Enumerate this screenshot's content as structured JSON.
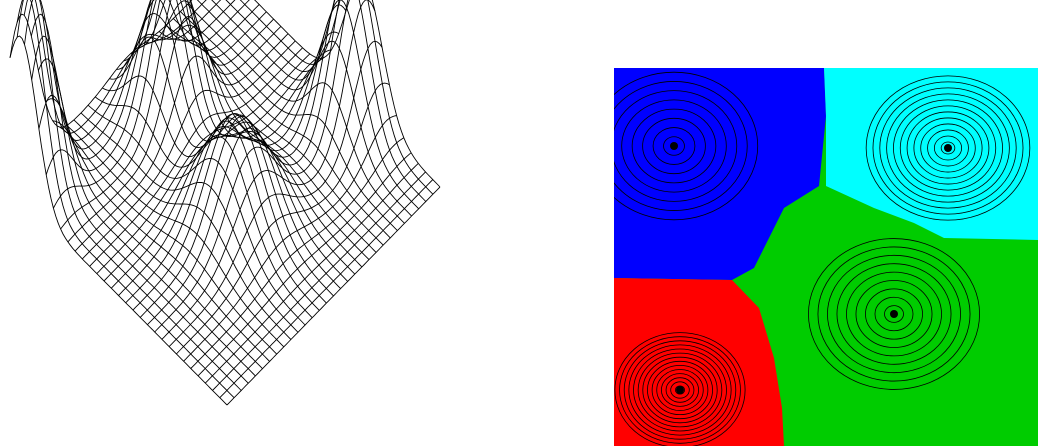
{
  "figure": {
    "surface_plot": {
      "type": "3d-wireframe-surface",
      "grid_lines_per_side": 31,
      "peaks": [
        {
          "name": "back-left",
          "height": 1.0
        },
        {
          "name": "back-center",
          "height": 0.72
        },
        {
          "name": "back-right",
          "height": 0.78
        },
        {
          "name": "front",
          "height": 0.5
        }
      ],
      "line_color": "#000000",
      "background": "#ffffff"
    },
    "region_plot": {
      "type": "partition-with-contours",
      "regions": [
        {
          "name": "top-left",
          "color": "#0000ff"
        },
        {
          "name": "top-right",
          "color": "#00ffff"
        },
        {
          "name": "bottom-left",
          "color": "#ff0000"
        },
        {
          "name": "bottom-right",
          "color": "#00cc00"
        }
      ],
      "centers": [
        {
          "region": "top-left",
          "contour_rings": 8
        },
        {
          "region": "top-right",
          "contour_rings": 12
        },
        {
          "region": "bottom-left",
          "contour_rings": 14
        },
        {
          "region": "bottom-right",
          "contour_rings": 9
        }
      ],
      "center_marker_color": "#000000",
      "contour_color": "#000000"
    }
  }
}
